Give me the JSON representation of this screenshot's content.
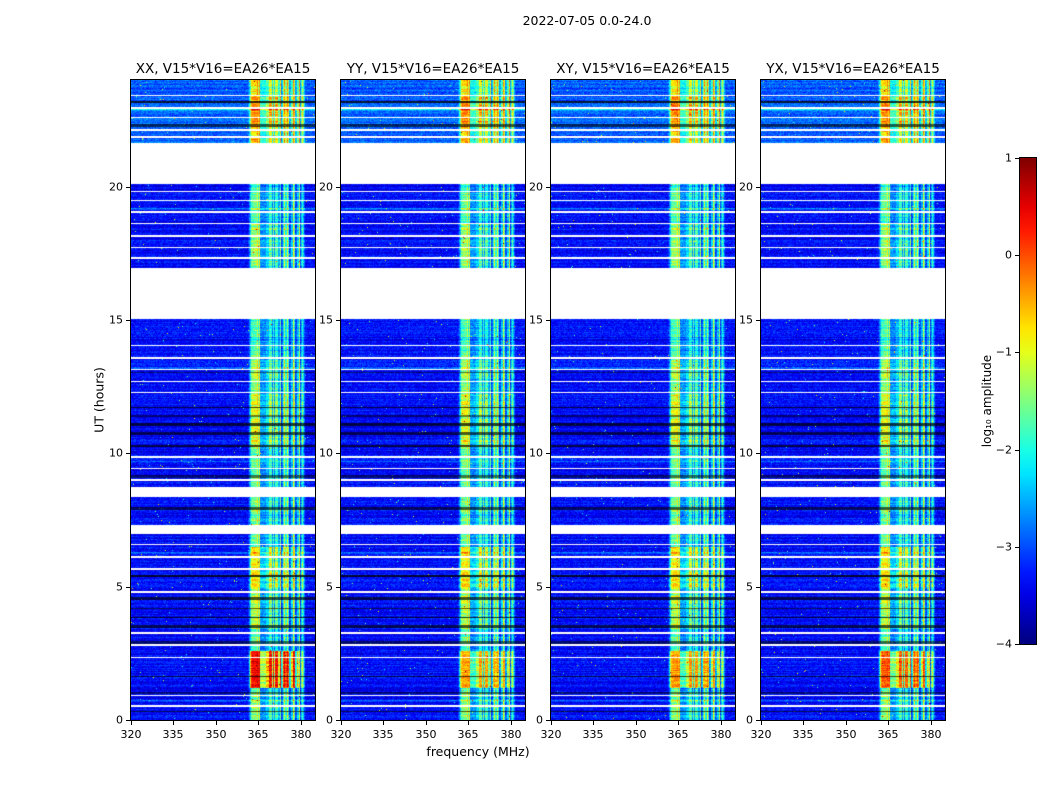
{
  "chart_data": {
    "type": "heatmap",
    "title": "2022-07-05 0.0-24.0",
    "xlabel": "frequency (MHz)",
    "ylabel": "UT (hours)",
    "x_range_mhz": [
      320,
      385
    ],
    "x_tick_values": [
      320,
      335,
      350,
      365,
      380
    ],
    "x_tick_labels": [
      "320",
      "335",
      "350",
      "365",
      "380"
    ],
    "y_range_hours": [
      0,
      24
    ],
    "y_tick_values": [
      0,
      5,
      10,
      15,
      20
    ],
    "y_tick_labels": [
      "0",
      "5",
      "10",
      "15",
      "20"
    ],
    "panels": [
      {
        "pol": "XX",
        "label": "XX, V15*V16=EA26*EA15"
      },
      {
        "pol": "YY",
        "label": "YY, V15*V16=EA26*EA15"
      },
      {
        "pol": "XY",
        "label": "XY, V15*V16=EA26*EA15"
      },
      {
        "pol": "YX",
        "label": "YX, V15*V16=EA26*EA15"
      }
    ],
    "colorbar": {
      "label": "log₁₀ amplitude",
      "colormap": "jet",
      "vmin": -4,
      "vmax": 1,
      "tick_values": [
        1,
        0,
        -1,
        -2,
        -3,
        -4
      ],
      "tick_labels": [
        "1",
        "0",
        "−1",
        "−2",
        "−3",
        "−4"
      ]
    },
    "features": {
      "background_log10": -3.4,
      "data_gaps_ut": [
        [
          15.05,
          16.95
        ],
        [
          20.1,
          21.62
        ],
        [
          8.35,
          8.72
        ],
        [
          6.98,
          7.33
        ]
      ],
      "thin_gap_lines_ut": [
        23.45,
        23.0,
        22.6,
        22.15,
        21.9,
        19.85,
        19.5,
        19.1,
        18.65,
        18.2,
        17.75,
        17.35,
        14.05,
        13.6,
        13.15,
        12.7,
        12.3,
        9.9,
        9.45,
        9.05,
        6.6,
        6.15,
        5.7,
        4.85,
        3.3,
        2.85,
        2.35,
        0.95,
        0.55
      ],
      "dark_rows_ut": [
        23.2,
        22.35,
        13.05,
        11.75,
        11.45,
        11.15,
        10.8,
        10.3,
        9.2,
        8.0,
        5.45,
        4.6,
        4.2,
        3.85,
        3.55,
        2.95,
        1.65,
        1.05,
        0.35
      ],
      "bright_rows_ut": [
        22.9,
        19.2,
        13.25,
        9.7,
        6.3,
        0.75
      ],
      "rfi_band_mhz": [
        361.5,
        381.5
      ],
      "band_intensity_vs_ut": [
        [
          0,
          0.85
        ],
        [
          1.2,
          1.6
        ],
        [
          2.6,
          0.75
        ],
        [
          3.4,
          0.95
        ],
        [
          5.0,
          1.2
        ],
        [
          6.5,
          0.8
        ],
        [
          7.33,
          0.8
        ],
        [
          8.72,
          0.75
        ],
        [
          10.2,
          1.05
        ],
        [
          12.2,
          0.9
        ],
        [
          13.6,
          0.7
        ],
        [
          17.0,
          0.9
        ],
        [
          18.6,
          0.7
        ],
        [
          20.1,
          0.7
        ],
        [
          21.62,
          1.05
        ],
        [
          22.2,
          1.25
        ],
        [
          23.4,
          1.0
        ]
      ],
      "top_block_boost": {
        "ut": [
          21.62,
          24
        ],
        "extra_log10": 0.45
      },
      "event": {
        "ut": [
          1.2,
          2.6
        ],
        "mhz": [
          362,
          379
        ],
        "extra_log10": {
          "XX": 0.5,
          "YY": 0.12,
          "XY": 0.15,
          "YX": 0.3
        }
      }
    }
  }
}
